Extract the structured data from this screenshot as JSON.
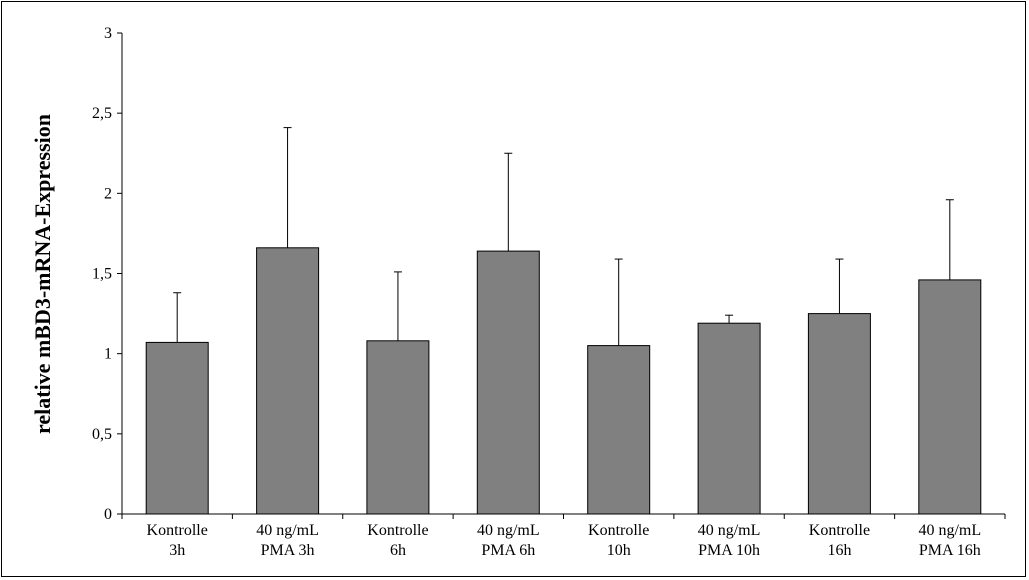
{
  "chart_data": {
    "type": "bar",
    "title": "",
    "xlabel": "",
    "ylabel": "relative mBD3-mRNA-Expression",
    "ylim": [
      0,
      3
    ],
    "yticks": [
      0,
      0.5,
      1,
      1.5,
      2,
      2.5,
      3
    ],
    "ytick_labels": [
      "0",
      "0,5",
      "1",
      "1,5",
      "2",
      "2,5",
      "3"
    ],
    "grid": false,
    "legend": "none",
    "bar_color": "#808080",
    "categories": [
      [
        "Kontrolle",
        "3h"
      ],
      [
        "40 ng/mL",
        "PMA 3h"
      ],
      [
        "Kontrolle",
        "6h"
      ],
      [
        "40 ng/mL",
        "PMA 6h"
      ],
      [
        "Kontrolle",
        "10h"
      ],
      [
        "40 ng/mL",
        "PMA 10h"
      ],
      [
        "Kontrolle",
        "16h"
      ],
      [
        "40 ng/mL",
        "PMA 16h"
      ]
    ],
    "values": [
      1.07,
      1.66,
      1.08,
      1.64,
      1.05,
      1.19,
      1.25,
      1.46
    ],
    "error_upper": [
      0.31,
      0.75,
      0.43,
      0.61,
      0.54,
      0.05,
      0.34,
      0.5
    ]
  }
}
